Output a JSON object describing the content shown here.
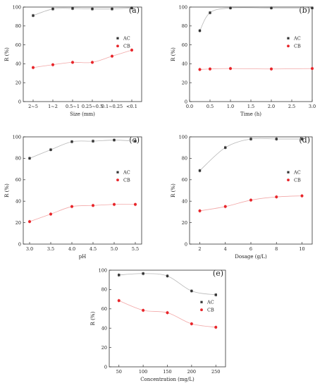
{
  "colors": {
    "AC": "#333333",
    "CB": "#e8252a",
    "fit_AC": "#b8b8b8",
    "fit_CB": "#f2a8a8",
    "axis": "#333333"
  },
  "chart_data": [
    {
      "panel": "(a)",
      "type": "scatter",
      "xaxis": "categorical",
      "categories": [
        "2~5",
        "1~2",
        "0.5~1",
        "0.25~0.5",
        "0.1~0.25",
        "<0.1"
      ],
      "xlabel": "Size (mm)",
      "ylabel": "R (%)",
      "ylim": [
        0,
        100
      ],
      "yticks": [
        0,
        20,
        40,
        60,
        80,
        100
      ],
      "legend": "center-right",
      "grid": false,
      "series": [
        {
          "name": "AC",
          "marker": "square",
          "values": [
            91,
            98,
            98.5,
            98,
            98,
            99
          ]
        },
        {
          "name": "CB",
          "marker": "circle",
          "values": [
            36,
            39,
            41.5,
            41.5,
            48,
            54.5
          ]
        }
      ]
    },
    {
      "panel": "(b)",
      "type": "scatter",
      "xaxis": "numeric",
      "x": [
        0.25,
        0.5,
        1.0,
        2.0,
        3.0
      ],
      "xlabel": "Time (h)",
      "ylabel": "R (%)",
      "xlim": [
        0,
        3.0
      ],
      "xticks": [
        "0.0",
        "0.5",
        "1.0",
        "1.5",
        "2.0",
        "2.5",
        "3.0"
      ],
      "ylim": [
        0,
        100
      ],
      "yticks": [
        0,
        20,
        40,
        60,
        80,
        100
      ],
      "legend": "center-right",
      "grid": false,
      "series": [
        {
          "name": "AC",
          "marker": "square",
          "values": [
            75,
            94,
            99,
            99,
            99
          ]
        },
        {
          "name": "CB",
          "marker": "circle",
          "values": [
            34,
            34.5,
            35,
            34.5,
            35
          ]
        }
      ]
    },
    {
      "panel": "(c)",
      "type": "scatter",
      "xaxis": "numeric",
      "x": [
        3.0,
        3.5,
        4.0,
        4.5,
        5.0,
        5.5
      ],
      "xlabel": "pH",
      "ylabel": "R (%)",
      "xlim": [
        2.85,
        5.65
      ],
      "xticks": [
        "3.0",
        "3.5",
        "4.0",
        "4.5",
        "5.0",
        "5.5"
      ],
      "ylim": [
        0,
        100
      ],
      "yticks": [
        0,
        20,
        40,
        60,
        80,
        100
      ],
      "legend": "center-right",
      "grid": false,
      "series": [
        {
          "name": "AC",
          "marker": "square",
          "values": [
            80,
            88,
            95.5,
            96,
            97,
            96
          ]
        },
        {
          "name": "CB",
          "marker": "circle",
          "values": [
            21,
            28,
            35,
            36,
            37,
            37
          ]
        }
      ]
    },
    {
      "panel": "(d)",
      "type": "scatter",
      "xaxis": "numeric",
      "x": [
        2,
        4,
        6,
        8,
        10
      ],
      "xlabel": "Dosage (g/L)",
      "ylabel": "R (%)",
      "xlim": [
        1.2,
        10.8
      ],
      "xticks": [
        "2",
        "4",
        "6",
        "8",
        "10"
      ],
      "ylim": [
        0,
        100
      ],
      "yticks": [
        0,
        20,
        40,
        60,
        80,
        100
      ],
      "legend": "center-right",
      "grid": false,
      "series": [
        {
          "name": "AC",
          "marker": "square",
          "values": [
            68.5,
            90,
            98,
            98,
            98
          ]
        },
        {
          "name": "CB",
          "marker": "circle",
          "values": [
            31,
            35,
            41,
            44,
            45
          ]
        }
      ]
    },
    {
      "panel": "(e)",
      "type": "scatter",
      "xaxis": "numeric",
      "x": [
        50,
        100,
        150,
        200,
        250
      ],
      "xlabel": "Concentration (mg/L)",
      "ylabel": "R (%)",
      "xlim": [
        30,
        270
      ],
      "xticks": [
        "50",
        "100",
        "150",
        "200",
        "250"
      ],
      "ylim": [
        0,
        100
      ],
      "yticks": [
        0,
        20,
        40,
        60,
        80,
        100
      ],
      "legend": "center-right",
      "grid": false,
      "series": [
        {
          "name": "AC",
          "marker": "square",
          "values": [
            95,
            96.5,
            94,
            78.5,
            74.5
          ]
        },
        {
          "name": "CB",
          "marker": "circle",
          "values": [
            68.5,
            58.5,
            56,
            44.5,
            41
          ]
        }
      ]
    }
  ]
}
